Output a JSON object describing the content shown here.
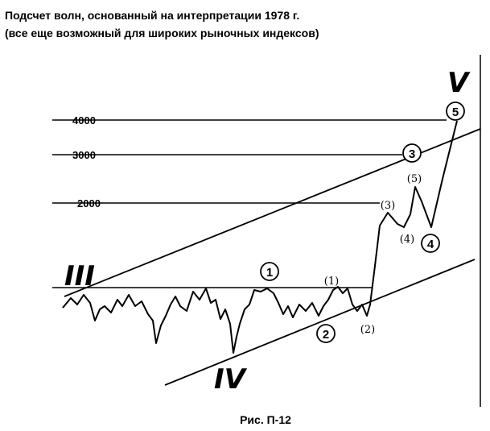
{
  "title": [
    "Подсчет волн, основанный на интерпретации 1978 г.",
    "(все еще возможный для широких рыночных индексов)"
  ],
  "axis_labels": [
    "4000",
    "3000",
    "2000"
  ],
  "degrees": [
    "III",
    "IV",
    "V"
  ],
  "circled_waves": [
    "1",
    "2",
    "3",
    "4",
    "5"
  ],
  "minor_waves": [
    "(1)",
    "(2)",
    "(3)",
    "(4)",
    "(5)"
  ],
  "caption": "Рис. П-12"
}
